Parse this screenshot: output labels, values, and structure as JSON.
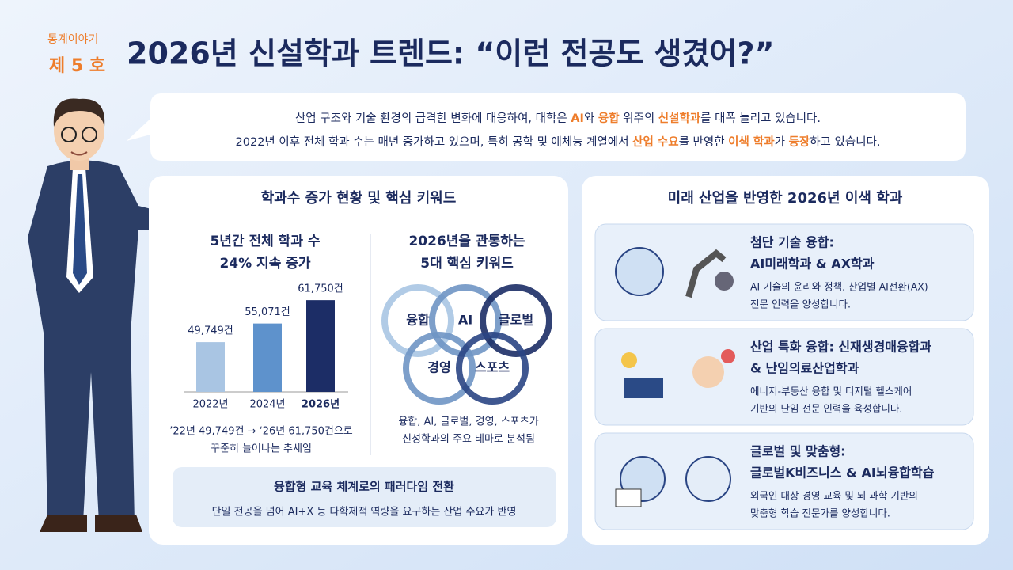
{
  "header": {
    "series_label": "통계이야기",
    "issue": "제 5 호",
    "title": "2026년 신설학과 트렌드: “이런 전공도 생겼어?”"
  },
  "intro": {
    "lines": [
      [
        "산업 구조와 기술 환경의 급격한 변화에 대응하여, 대학은 ",
        "AI",
        "와 ",
        "융합",
        " 위주의 ",
        "신설학과",
        "를 대폭 늘리고 있습니다."
      ],
      [
        "2022년 이후 전체 학과 수는 매년 증가하고 있으며, 특히 공학 및 예체능 계열에서 ",
        "산업 수요",
        "를 반영한 ",
        "이색 학과",
        "가 ",
        "등장",
        "하고 있습니다."
      ]
    ]
  },
  "left_panel": {
    "heading": "학과수 증가 현황 및 핵심 키워드",
    "keywords_title": [
      "2026년을 관통하는",
      "5대 핵심 키워드"
    ],
    "keywords": [
      "융합",
      "AI",
      "글로벌",
      "경영",
      "스포츠"
    ],
    "keywords_caption": [
      "융합, AI, 글로벌, 경영, 스포츠가",
      "신성학과의 주요 테마로 분석됨"
    ],
    "paradigm": {
      "title": "융합형 교육 체계로의 패러다임 전환",
      "text": "단일 전공을 넘어 AI+X 등 다학제적 역량을 요구하는 산업 수요가 반영"
    }
  },
  "chart_data": {
    "type": "bar",
    "title": [
      "5년간 전체 학과 수",
      "24% 지속 증가"
    ],
    "categories": [
      "2022년",
      "2024년",
      "2026년"
    ],
    "values": [
      49749,
      55071,
      61750
    ],
    "value_labels": [
      "49,749건",
      "55,071건",
      "61,750건"
    ],
    "colors": [
      "#a9c5e3",
      "#5e92cc",
      "#1c2d66"
    ],
    "ylim": [
      35500,
      64500
    ],
    "caption": [
      "’22년 49,749건 → ‘26년 61,750건으로",
      "꾸준히 늘어나는 추세임"
    ]
  },
  "right_panel": {
    "heading": "미래 산업을 반영한 2026년 이색 학과",
    "cards": [
      {
        "title": [
          "첨단 기술 융합:",
          "AI미래학과 & AX학과"
        ],
        "text": [
          "AI 기술의 윤리와 정책, 산업별 AI전환(AX)",
          "전문 인력을 양성합니다."
        ]
      },
      {
        "title": [
          "산업 특화 융합: 신재생경매융합과",
          "& 난임의료산업학과"
        ],
        "text": [
          "에너지-부동산 융합 및 디지털 헬스케어",
          "기반의 난임 전문 인력을 육성합니다."
        ]
      },
      {
        "title": [
          "글로벌 및 맞춤형:",
          "글로벌K비즈니스 & AI뇌융합학습"
        ],
        "text": [
          "외국인 대상 경영 교육 및 뇌 과학 기반의",
          "맞춤형 학습 전문가를 양성합니다."
        ]
      }
    ]
  }
}
